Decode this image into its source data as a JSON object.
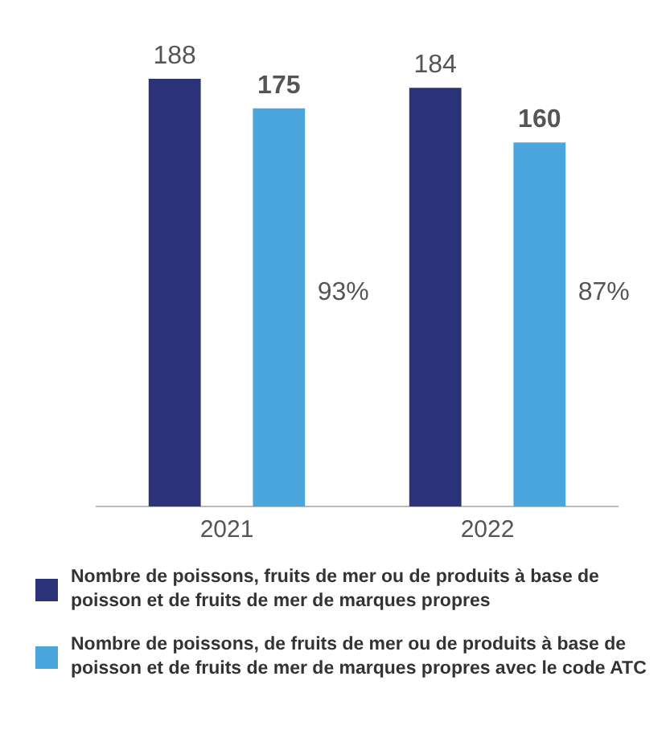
{
  "chart_data": {
    "type": "bar",
    "categories": [
      "2021",
      "2022"
    ],
    "series": [
      {
        "name": "Nombre de poissons, fruits de mer ou de produits à base de poisson et de fruits de mer de marques propres",
        "color": "#2b3277",
        "values": [
          188,
          184
        ]
      },
      {
        "name": "Nombre de poissons, de fruits de mer ou de produits à base de poisson et de fruits de mer de marques propres avec le code ATC",
        "color": "#4aa6dc",
        "values": [
          175,
          160
        ]
      }
    ],
    "data_labels": true,
    "grid": false,
    "legend": "bottom",
    "tick_labels": "x",
    "annotations": [
      "93%",
      "87%"
    ]
  }
}
